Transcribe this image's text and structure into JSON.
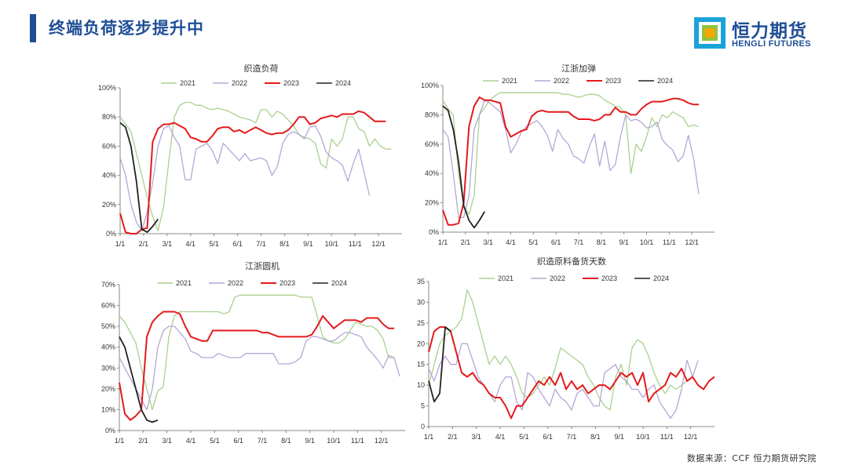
{
  "title": "终端负荷逐步提升中",
  "logo": {
    "cn": "恒力期货",
    "en": "HENGLI FUTURES"
  },
  "source": "数据来源：CCF 恒力期货研究院",
  "colors": {
    "accent": "#1f4e96",
    "s2021": "#a9d18e",
    "s2022": "#b4a7d6",
    "s2023": "#e31a1c",
    "s2024": "#222222"
  },
  "chart_data": [
    {
      "type": "line",
      "title": "织造负荷",
      "x_ticks": [
        "1/1",
        "2/1",
        "3/1",
        "4/1",
        "5/1",
        "6/1",
        "7/1",
        "8/1",
        "9/1",
        "10/1",
        "11/1",
        "12/1"
      ],
      "y_ticks": [
        "0%",
        "20%",
        "40%",
        "60%",
        "80%",
        "100%"
      ],
      "ylim": [
        0,
        100
      ],
      "series": [
        {
          "name": "2021",
          "color": "#a9d18e",
          "values": [
            80,
            75,
            70,
            55,
            40,
            25,
            12,
            2,
            18,
            50,
            80,
            88,
            90,
            90,
            88,
            88,
            86,
            85,
            86,
            85,
            84,
            82,
            80,
            79,
            78,
            76,
            85,
            85,
            80,
            84,
            82,
            78,
            74,
            68,
            66,
            65,
            62,
            48,
            45,
            65,
            60,
            65,
            80,
            80,
            72,
            70,
            60,
            65,
            60,
            58,
            58
          ]
        },
        {
          "name": "2022",
          "color": "#b4a7d6",
          "values": [
            52,
            40,
            20,
            8,
            2,
            15,
            35,
            60,
            72,
            74,
            66,
            60,
            37,
            37,
            58,
            60,
            62,
            57,
            48,
            62,
            58,
            54,
            50,
            55,
            50,
            51,
            52,
            50,
            40,
            46,
            62,
            68,
            70,
            68,
            65,
            73,
            74,
            67,
            56,
            52,
            50,
            47,
            36,
            48,
            58,
            42,
            26
          ]
        },
        {
          "name": "2023",
          "color": "#e31a1c",
          "values": [
            14,
            1,
            0,
            0,
            3,
            4,
            63,
            72,
            75,
            75,
            76,
            74,
            72,
            66,
            65,
            63,
            63,
            67,
            72,
            73,
            73,
            70,
            71,
            69,
            71,
            73,
            71,
            69,
            68,
            69,
            69,
            71,
            75,
            80,
            80,
            75,
            76,
            79,
            80,
            81,
            80,
            82,
            82,
            82,
            84,
            83,
            80,
            77,
            77,
            77
          ]
        },
        {
          "name": "2024",
          "color": "#222222",
          "values": [
            76,
            73,
            60,
            36,
            3,
            1,
            5,
            10
          ]
        }
      ]
    },
    {
      "type": "line",
      "title": "江浙加弹",
      "x_ticks": [
        "1/1",
        "2/1",
        "3/1",
        "4/1",
        "5/1",
        "6/1",
        "7/1",
        "8/1",
        "9/1",
        "10/1",
        "11/1",
        "12/1"
      ],
      "y_ticks": [
        "0%",
        "20%",
        "40%",
        "60%",
        "80%",
        "100%"
      ],
      "ylim": [
        0,
        100
      ],
      "series": [
        {
          "name": "2021",
          "color": "#a9d18e",
          "values": [
            90,
            84,
            80,
            40,
            18,
            12,
            25,
            80,
            85,
            90,
            93,
            95,
            95,
            95,
            95,
            95,
            95,
            95,
            95,
            95,
            95,
            95,
            95,
            94,
            94,
            93,
            92,
            93,
            94,
            94,
            93,
            90,
            88,
            86,
            85,
            80,
            40,
            60,
            55,
            65,
            78,
            72,
            80,
            78,
            82,
            80,
            78,
            72,
            73,
            72
          ]
        },
        {
          "name": "2022",
          "color": "#b4a7d6",
          "values": [
            70,
            65,
            40,
            10,
            10,
            25,
            70,
            80,
            90,
            88,
            85,
            82,
            70,
            54,
            60,
            68,
            72,
            74,
            76,
            72,
            66,
            55,
            70,
            64,
            60,
            52,
            50,
            47,
            58,
            67,
            45,
            62,
            42,
            46,
            65,
            80,
            76,
            77,
            75,
            71,
            72,
            75,
            63,
            59,
            56,
            48,
            52,
            66,
            50,
            26
          ]
        },
        {
          "name": "2023",
          "color": "#e31a1c",
          "values": [
            15,
            5,
            5,
            6,
            20,
            72,
            86,
            92,
            90,
            90,
            89,
            88,
            72,
            65,
            67,
            69,
            70,
            79,
            82,
            83,
            82,
            82,
            82,
            82,
            82,
            79,
            77,
            77,
            77,
            76,
            77,
            80,
            80,
            85,
            82,
            82,
            80,
            80,
            84,
            87,
            89,
            89,
            89,
            90,
            91,
            91,
            90,
            88,
            87,
            87
          ]
        },
        {
          "name": "2024",
          "color": "#222222",
          "values": [
            86,
            83,
            70,
            48,
            18,
            8,
            3,
            8,
            14
          ]
        }
      ]
    },
    {
      "type": "line",
      "title": "江浙圆机",
      "x_ticks": [
        "1/1",
        "2/1",
        "3/1",
        "4/1",
        "5/1",
        "6/1",
        "7/1",
        "8/1",
        "9/1",
        "10/1",
        "11/1",
        "12/1"
      ],
      "y_ticks": [
        "0%",
        "10%",
        "20%",
        "30%",
        "40%",
        "50%",
        "60%",
        "70%"
      ],
      "ylim": [
        0,
        70
      ],
      "series": [
        {
          "name": "2021",
          "color": "#a9d18e",
          "values": [
            55,
            52,
            47,
            42,
            30,
            20,
            10,
            19,
            21,
            45,
            55,
            57,
            57,
            57,
            57,
            57,
            57,
            57,
            57,
            56,
            57,
            64,
            65,
            65,
            65,
            65,
            65,
            65,
            65,
            65,
            65,
            65,
            65,
            64,
            64,
            64,
            55,
            45,
            43,
            42,
            42,
            44,
            48,
            52,
            51,
            50,
            50,
            48,
            44,
            35,
            35
          ]
        },
        {
          "name": "2022",
          "color": "#b4a7d6",
          "values": [
            35,
            30,
            25,
            20,
            15,
            10,
            20,
            40,
            48,
            50,
            50,
            47,
            44,
            38,
            37,
            35,
            35,
            35,
            37,
            36,
            35,
            35,
            35,
            37,
            37,
            37,
            37,
            37,
            37,
            32,
            32,
            32,
            33,
            35,
            43,
            45,
            45,
            44,
            43,
            43,
            45,
            47,
            47,
            46,
            45,
            40,
            37,
            34,
            30,
            36,
            35,
            26
          ]
        },
        {
          "name": "2023",
          "color": "#e31a1c",
          "values": [
            23,
            8,
            5,
            7,
            10,
            45,
            52,
            55,
            57,
            57,
            57,
            56,
            50,
            45,
            44,
            43,
            43,
            48,
            48,
            48,
            48,
            48,
            48,
            48,
            48,
            48,
            47,
            47,
            46,
            45,
            45,
            45,
            45,
            45,
            45,
            46,
            50,
            55,
            52,
            49,
            51,
            53,
            53,
            53,
            52,
            54,
            54,
            54,
            51,
            49,
            49
          ]
        },
        {
          "name": "2024",
          "color": "#222222",
          "values": [
            45,
            40,
            30,
            20,
            10,
            5,
            4,
            5
          ]
        }
      ]
    },
    {
      "type": "line",
      "title": "织造原料备货天数",
      "x_ticks": [
        "1/1",
        "2/1",
        "3/1",
        "4/1",
        "5/1",
        "6/1",
        "7/1",
        "8/1",
        "9/1",
        "10/1",
        "11/1",
        "12/1"
      ],
      "y_ticks": [
        "0",
        "5",
        "10",
        "15",
        "20",
        "25",
        "30",
        "35"
      ],
      "ylim": [
        0,
        35
      ],
      "series": [
        {
          "name": "2021",
          "color": "#a9d18e",
          "values": [
            10,
            15,
            20,
            22,
            23,
            24,
            26,
            33,
            30,
            25,
            20,
            15,
            17,
            15,
            17,
            15,
            12,
            8,
            7,
            8,
            10,
            12,
            10,
            14,
            19,
            18,
            17,
            16,
            15,
            12,
            10,
            7,
            5,
            4,
            12,
            15,
            10,
            19,
            21,
            20,
            17,
            13,
            10,
            8,
            10,
            9,
            10,
            11,
            12
          ]
        },
        {
          "name": "2022",
          "color": "#b4a7d6",
          "values": [
            14,
            11,
            15,
            17,
            15,
            15,
            20,
            20,
            16,
            12,
            10,
            8,
            6,
            10,
            12,
            12,
            6,
            4,
            13,
            12,
            9,
            7,
            5,
            9,
            7,
            6,
            4,
            8,
            9,
            7,
            5,
            5,
            13,
            14,
            15,
            12,
            11,
            9,
            9,
            7,
            9,
            10,
            6,
            4,
            2,
            4,
            9,
            16,
            12,
            16
          ]
        },
        {
          "name": "2023",
          "color": "#e31a1c",
          "values": [
            18,
            23,
            24,
            24,
            23,
            18,
            13,
            12,
            13,
            11,
            10,
            8,
            7,
            7,
            5,
            2,
            5,
            5,
            7,
            9,
            11,
            10,
            12,
            10,
            13,
            9,
            11,
            9,
            10,
            8,
            9,
            10,
            10,
            9,
            11,
            13,
            12,
            13,
            10,
            13,
            6,
            8,
            9,
            10,
            13,
            12,
            14,
            11,
            12,
            10,
            9,
            11,
            12
          ]
        },
        {
          "name": "2024",
          "color": "#222222",
          "values": [
            11,
            6,
            8,
            24,
            23
          ]
        }
      ]
    }
  ]
}
